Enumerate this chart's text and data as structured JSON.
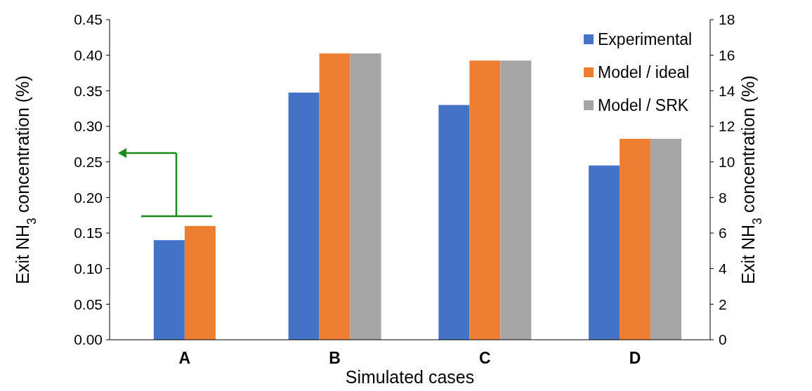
{
  "chart_data": {
    "type": "bar",
    "xlabel": "Simulated cases",
    "ylabel": "Exit NH$_{3}$ concentration (%)",
    "y2label": "Exit NH$_{3}$ concentration (%)",
    "categories": [
      "A",
      "B",
      "C",
      "D"
    ],
    "series": [
      {
        "name": "Experimental",
        "color": "#4472c4",
        "axis": "y2",
        "values": [
          null,
          13.9,
          13.2,
          9.8
        ]
      },
      {
        "name": "Model / ideal",
        "color": "#ed7d31",
        "axis": "y2",
        "values": [
          null,
          16.1,
          15.7,
          11.3
        ]
      },
      {
        "name": "Model / SRK",
        "color": "#a5a5a5",
        "axis": "y2",
        "values": [
          null,
          16.1,
          15.7,
          11.3
        ]
      },
      {
        "color": "#4472c4",
        "axis": "y",
        "values": [
          0.14,
          null,
          null,
          null
        ]
      },
      {
        "color": "#ed7d31",
        "axis": "y",
        "values": [
          0.16,
          null,
          null,
          null
        ]
      }
    ],
    "ylim": [
      0,
      0.45
    ],
    "yticks": [
      {
        "value": 0,
        "label": "0.00"
      },
      {
        "value": 0.05,
        "label": "0.05"
      },
      {
        "value": 0.1,
        "label": "0.10"
      },
      {
        "value": 0.15,
        "label": "0.15"
      },
      {
        "value": 0.2,
        "label": "0.20"
      },
      {
        "value": 0.25,
        "label": "0.25"
      },
      {
        "value": 0.3,
        "label": "0.30"
      },
      {
        "value": 0.35,
        "label": "0.35"
      },
      {
        "value": 0.4,
        "label": "0.40"
      },
      {
        "value": 0.45,
        "label": "0.45"
      }
    ],
    "y2lim": [
      0,
      18
    ],
    "y2ticks": [
      0,
      2,
      4,
      6,
      8,
      10,
      12,
      14,
      16,
      18
    ],
    "legend": "top right",
    "grid": false
  }
}
